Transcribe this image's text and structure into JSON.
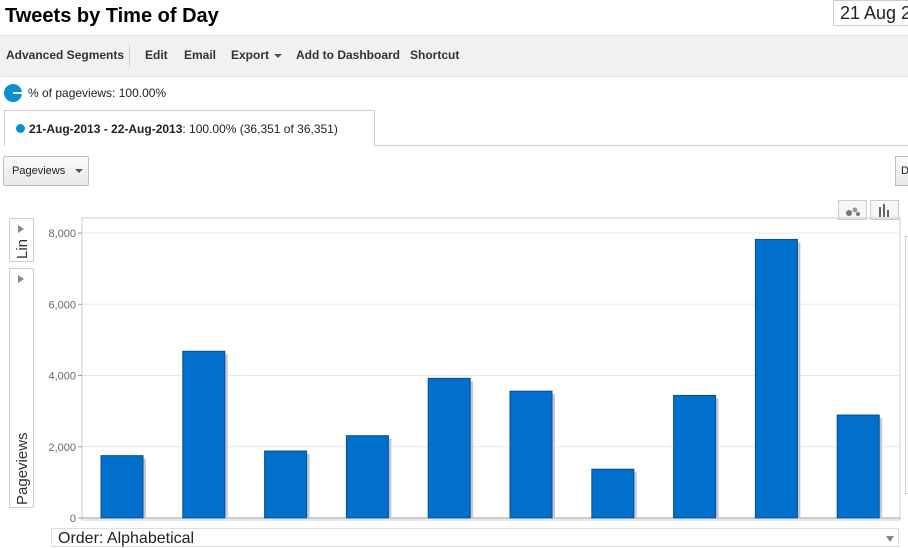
{
  "header": {
    "title": "Tweets by Time of Day",
    "date": "21 Aug 2"
  },
  "toolbar": {
    "advanced_segments": "Advanced Segments",
    "edit": "Edit",
    "email": "Email",
    "export": "Export",
    "add_to_dashboard": "Add to Dashboard",
    "shortcut": "Shortcut"
  },
  "segment": {
    "percent_label": "% of pageviews: 100.00%",
    "range": "21-Aug-2013 - 22-Aug-2013",
    "range_detail": ": 100.00% (36,351 of 36,351)"
  },
  "controls": {
    "metric": "Pageviews",
    "right_button": "D",
    "side_tab_label": "Lin",
    "order": "Order: Alphabetical"
  },
  "icons": {
    "scatter": "scatter-chart-icon",
    "bar": "bar-chart-icon"
  },
  "colors": {
    "bar": "#0170cc",
    "accent": "#0a8fd1"
  },
  "chart_data": {
    "type": "bar",
    "categories": [
      "",
      "",
      "",
      "",
      "",
      "",
      "",
      "",
      "",
      ""
    ],
    "values": [
      1750,
      4680,
      1880,
      2310,
      3920,
      3560,
      1370,
      3440,
      7820,
      2890
    ],
    "ylabel": "Pageviews",
    "yticks": [
      "0",
      "2,000",
      "4,000",
      "6,000",
      "8,000"
    ],
    "ylim": [
      0,
      8000
    ],
    "grid": true
  }
}
